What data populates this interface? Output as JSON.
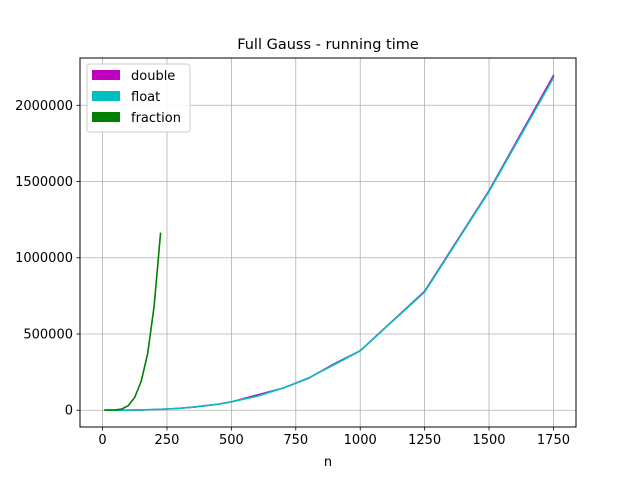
{
  "chart_data": {
    "type": "line",
    "title": "Full Gauss - running time",
    "xlabel": "n",
    "ylabel": "",
    "xlim": [
      -87.5,
      1837.5
    ],
    "ylim": [
      -110000,
      2310000
    ],
    "xticks": [
      0,
      250,
      500,
      750,
      1000,
      1250,
      1500,
      1750
    ],
    "xtick_labels": [
      "0",
      "250",
      "500",
      "750",
      "1000",
      "1250",
      "1500",
      "1750"
    ],
    "yticks": [
      0,
      500000,
      1000000,
      1500000,
      2000000
    ],
    "ytick_labels": [
      "0",
      "500000",
      "1000000",
      "1500000",
      "2000000"
    ],
    "grid": true,
    "legend_position": "top-left",
    "series": [
      {
        "name": "double",
        "color": "#bf00bf",
        "x": [
          10,
          50,
          100,
          150,
          200,
          250,
          300,
          350,
          400,
          450,
          500,
          600,
          700,
          800,
          900,
          1000,
          1250,
          1500,
          1750
        ],
        "y": [
          0,
          200,
          700,
          2000,
          4500,
          8000,
          13000,
          20000,
          30000,
          40000,
          55000,
          100000,
          145000,
          210000,
          305000,
          390000,
          780000,
          1440000,
          2195000
        ]
      },
      {
        "name": "float",
        "color": "#00bfbf",
        "x": [
          10,
          50,
          100,
          150,
          200,
          250,
          300,
          350,
          400,
          450,
          500,
          600,
          700,
          800,
          900,
          1000,
          1250,
          1500,
          1750
        ],
        "y": [
          0,
          200,
          700,
          2000,
          4500,
          8000,
          13000,
          20000,
          30000,
          40000,
          55000,
          92000,
          145000,
          212000,
          300000,
          390000,
          775000,
          1435000,
          2180000
        ]
      },
      {
        "name": "fraction",
        "color": "#008000",
        "x": [
          10,
          25,
          50,
          75,
          100,
          125,
          150,
          175,
          200,
          225
        ],
        "y": [
          0,
          1000,
          2000,
          8000,
          30000,
          85000,
          190000,
          370000,
          680000,
          1160000
        ]
      }
    ]
  }
}
